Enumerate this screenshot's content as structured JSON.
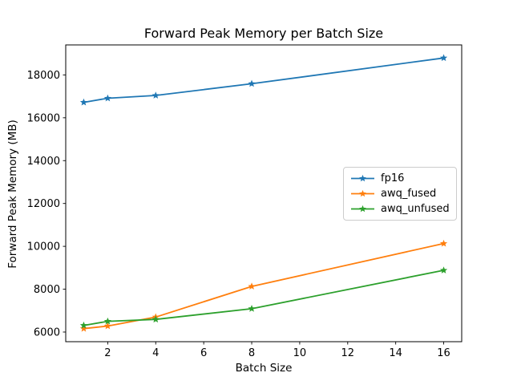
{
  "figure": {
    "background": "#ffffff",
    "text_color": "#000000",
    "axes_edge_color": "#000000"
  },
  "chart_data": {
    "type": "line",
    "title": "Forward Peak Memory per Batch Size",
    "xlabel": "Batch Size",
    "ylabel": "Forward Peak Memory (MB)",
    "x": [
      1,
      2,
      4,
      8,
      16
    ],
    "series": [
      {
        "name": "fp16",
        "color": "#1f77b4",
        "values": [
          16720,
          16910,
          17040,
          17590,
          18790
        ]
      },
      {
        "name": "awq_fused",
        "color": "#ff7f0e",
        "values": [
          6160,
          6280,
          6700,
          8130,
          10130
        ]
      },
      {
        "name": "awq_unfused",
        "color": "#2ca02c",
        "values": [
          6310,
          6500,
          6590,
          7090,
          8880
        ]
      }
    ],
    "marker": "star",
    "xticks": [
      2,
      4,
      6,
      8,
      10,
      12,
      14,
      16
    ],
    "yticks": [
      6000,
      8000,
      10000,
      12000,
      14000,
      16000,
      18000
    ],
    "xlim": [
      0.25,
      16.75
    ],
    "ylim": [
      5550,
      19400
    ],
    "grid": false,
    "legend_position": "center-right"
  }
}
